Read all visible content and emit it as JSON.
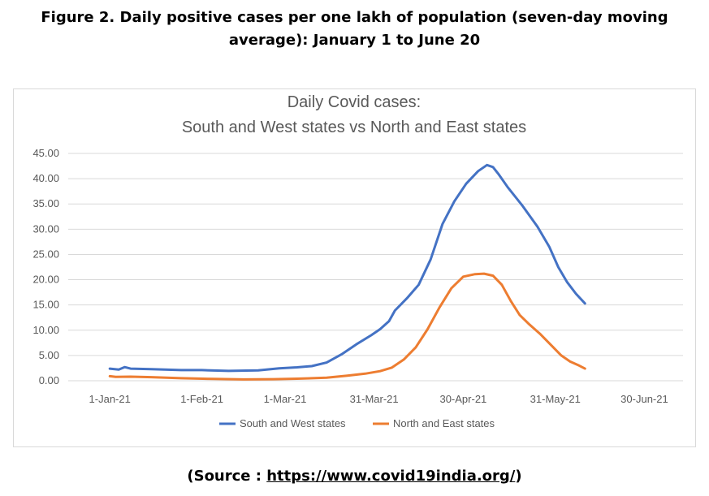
{
  "caption": {
    "line1": "Figure 2.  Daily positive cases per one lakh of population (seven-day moving",
    "line2": "average): January 1 to June 20"
  },
  "source": {
    "prefix": "(Source : ",
    "link_text": "https://www.covid19india.org/",
    "suffix": ")"
  },
  "chart_data": {
    "type": "line",
    "title": "Daily Covid cases:",
    "subtitle": "South and West states vs North and East states",
    "xlabel": "",
    "ylabel": "",
    "ylim": [
      0,
      45
    ],
    "y_ticks": [
      "0.00",
      "5.00",
      "10.00",
      "15.00",
      "20.00",
      "25.00",
      "30.00",
      "35.00",
      "40.00",
      "45.00"
    ],
    "x_range": [
      "2020-12-18",
      "2021-07-13"
    ],
    "x_ticks": [
      {
        "date": "2021-01-01",
        "label": "1-Jan-21"
      },
      {
        "date": "2021-02-01",
        "label": "1-Feb-21"
      },
      {
        "date": "2021-03-01",
        "label": "1-Mar-21"
      },
      {
        "date": "2021-03-31",
        "label": "31-Mar-21"
      },
      {
        "date": "2021-04-30",
        "label": "30-Apr-21"
      },
      {
        "date": "2021-05-31",
        "label": "31-May-21"
      },
      {
        "date": "2021-06-30",
        "label": "30-Jun-21"
      }
    ],
    "grid": true,
    "legend_position": "bottom",
    "series": [
      {
        "name": "South and West states",
        "color": "#4472C4",
        "points": [
          [
            "2021-01-01",
            2.4
          ],
          [
            "2021-01-04",
            2.2
          ],
          [
            "2021-01-06",
            2.7
          ],
          [
            "2021-01-08",
            2.4
          ],
          [
            "2021-01-15",
            2.3
          ],
          [
            "2021-01-25",
            2.1
          ],
          [
            "2021-02-01",
            2.1
          ],
          [
            "2021-02-10",
            1.95
          ],
          [
            "2021-02-20",
            2.05
          ],
          [
            "2021-02-27",
            2.45
          ],
          [
            "2021-03-05",
            2.65
          ],
          [
            "2021-03-10",
            2.9
          ],
          [
            "2021-03-15",
            3.6
          ],
          [
            "2021-03-20",
            5.2
          ],
          [
            "2021-03-25",
            7.2
          ],
          [
            "2021-03-30",
            9.0
          ],
          [
            "2021-04-02",
            10.2
          ],
          [
            "2021-04-05",
            11.8
          ],
          [
            "2021-04-07",
            13.9
          ],
          [
            "2021-04-11",
            16.3
          ],
          [
            "2021-04-15",
            19.0
          ],
          [
            "2021-04-19",
            24.0
          ],
          [
            "2021-04-23",
            31.0
          ],
          [
            "2021-04-27",
            35.5
          ],
          [
            "2021-05-01",
            39.0
          ],
          [
            "2021-05-05",
            41.5
          ],
          [
            "2021-05-08",
            42.7
          ],
          [
            "2021-05-10",
            42.3
          ],
          [
            "2021-05-12",
            40.8
          ],
          [
            "2021-05-15",
            38.3
          ],
          [
            "2021-05-20",
            34.6
          ],
          [
            "2021-05-25",
            30.5
          ],
          [
            "2021-05-29",
            26.5
          ],
          [
            "2021-06-01",
            22.5
          ],
          [
            "2021-06-04",
            19.5
          ],
          [
            "2021-06-07",
            17.2
          ],
          [
            "2021-06-10",
            15.3
          ]
        ]
      },
      {
        "name": "North and East states",
        "color": "#ED7D31",
        "points": [
          [
            "2021-01-01",
            0.9
          ],
          [
            "2021-01-03",
            0.75
          ],
          [
            "2021-01-08",
            0.8
          ],
          [
            "2021-01-15",
            0.7
          ],
          [
            "2021-01-25",
            0.5
          ],
          [
            "2021-02-05",
            0.35
          ],
          [
            "2021-02-15",
            0.25
          ],
          [
            "2021-02-25",
            0.3
          ],
          [
            "2021-03-05",
            0.4
          ],
          [
            "2021-03-15",
            0.6
          ],
          [
            "2021-03-22",
            1.0
          ],
          [
            "2021-03-28",
            1.4
          ],
          [
            "2021-04-02",
            1.9
          ],
          [
            "2021-04-06",
            2.6
          ],
          [
            "2021-04-10",
            4.2
          ],
          [
            "2021-04-14",
            6.6
          ],
          [
            "2021-04-18",
            10.2
          ],
          [
            "2021-04-22",
            14.5
          ],
          [
            "2021-04-26",
            18.3
          ],
          [
            "2021-04-30",
            20.6
          ],
          [
            "2021-05-04",
            21.1
          ],
          [
            "2021-05-07",
            21.2
          ],
          [
            "2021-05-10",
            20.8
          ],
          [
            "2021-05-13",
            19.0
          ],
          [
            "2021-05-16",
            15.8
          ],
          [
            "2021-05-19",
            13.0
          ],
          [
            "2021-05-22",
            11.3
          ],
          [
            "2021-05-26",
            9.2
          ],
          [
            "2021-05-30",
            6.8
          ],
          [
            "2021-06-02",
            5.0
          ],
          [
            "2021-06-05",
            3.8
          ],
          [
            "2021-06-08",
            3.0
          ],
          [
            "2021-06-10",
            2.4
          ]
        ]
      }
    ]
  }
}
